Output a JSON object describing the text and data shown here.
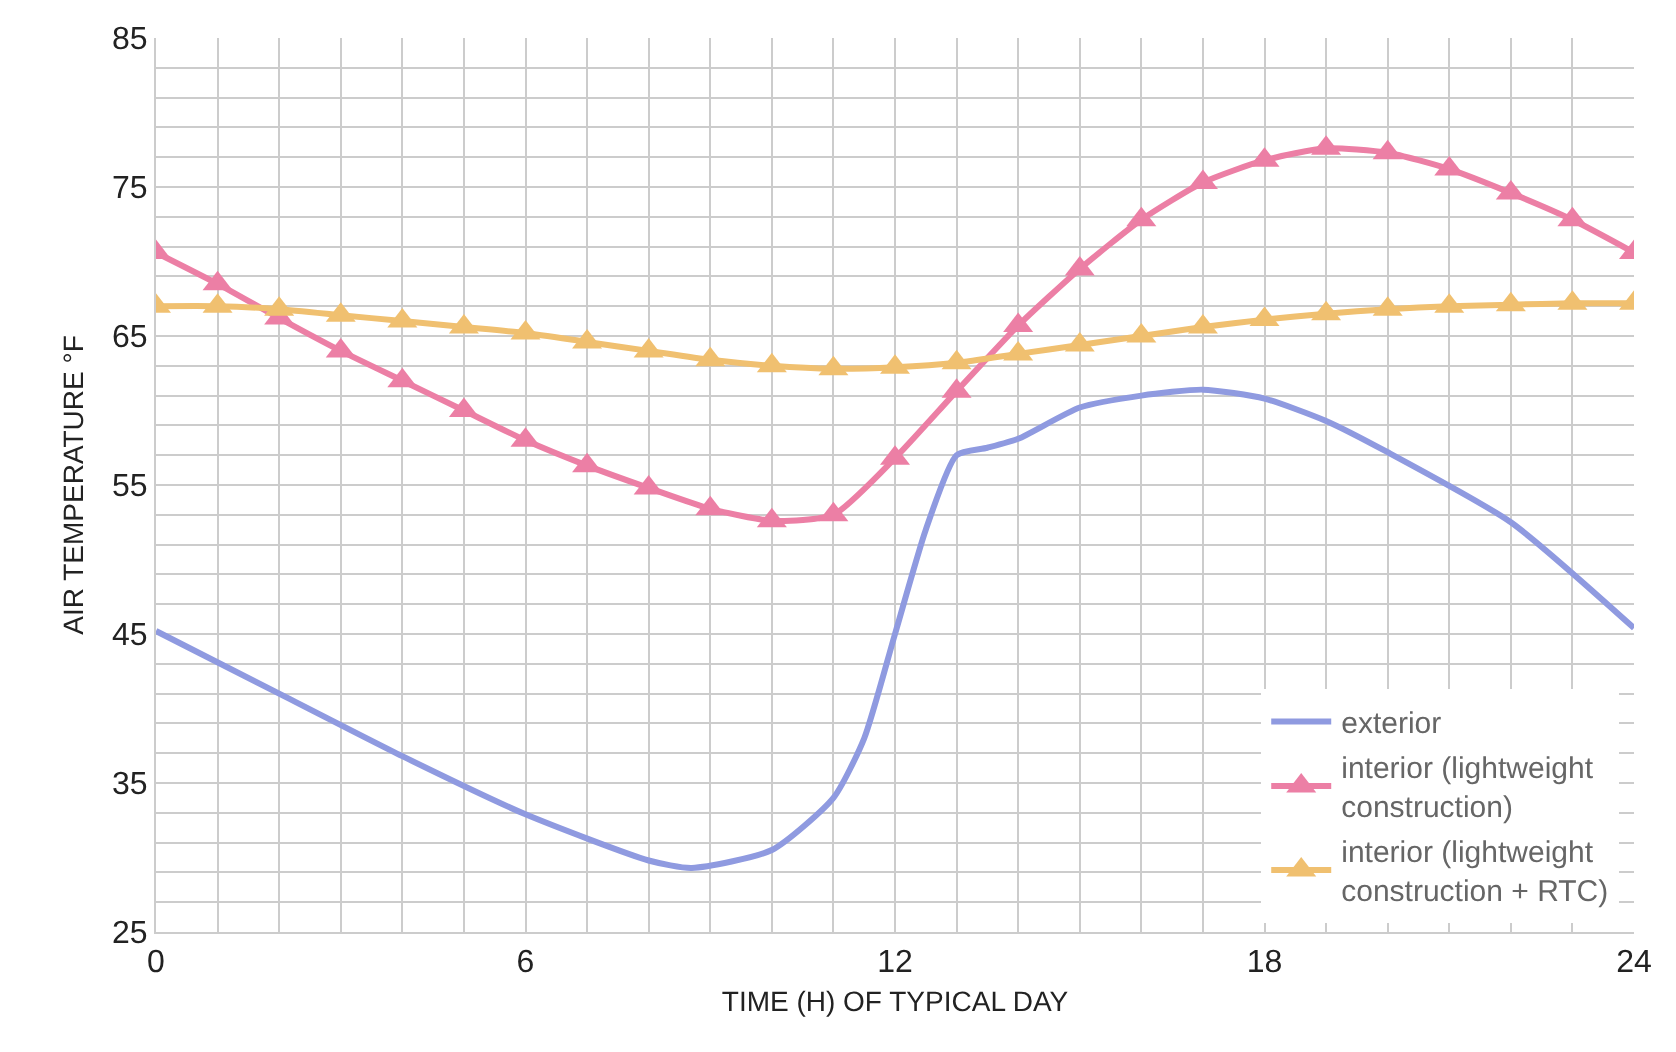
{
  "chart_data": {
    "type": "line",
    "xlabel": "TIME (H) OF TYPICAL DAY",
    "ylabel": "AIR TEMPERATURE °F",
    "xlim": [
      0,
      24
    ],
    "xticks": [
      0,
      {
        "value": 1,
        "label": null
      },
      {
        "value": 2,
        "label": null
      },
      {
        "value": 3,
        "label": null
      },
      {
        "value": 4,
        "label": null
      },
      {
        "value": 5,
        "label": null
      },
      6,
      {
        "value": 7,
        "label": null
      },
      {
        "value": 8,
        "label": null
      },
      {
        "value": 9,
        "label": null
      },
      {
        "value": 10,
        "label": null
      },
      {
        "value": 11,
        "label": null
      },
      12,
      {
        "value": 13,
        "label": null
      },
      {
        "value": 14,
        "label": null
      },
      {
        "value": 15,
        "label": null
      },
      {
        "value": 16,
        "label": null
      },
      {
        "value": 17,
        "label": null
      },
      18,
      {
        "value": 19,
        "label": null
      },
      {
        "value": 20,
        "label": null
      },
      {
        "value": 21,
        "label": null
      },
      {
        "value": 22,
        "label": null
      },
      {
        "value": 23,
        "label": null
      },
      24
    ],
    "ylim": [
      25,
      85
    ],
    "yticks": [
      25,
      {
        "value": 27,
        "label": null
      },
      {
        "value": 29,
        "label": null
      },
      {
        "value": 31,
        "label": null
      },
      {
        "value": 33,
        "label": null
      },
      35,
      {
        "value": 37,
        "label": null
      },
      {
        "value": 39,
        "label": null
      },
      {
        "value": 41,
        "label": null
      },
      {
        "value": 43,
        "label": null
      },
      45,
      {
        "value": 47,
        "label": null
      },
      {
        "value": 49,
        "label": null
      },
      {
        "value": 51,
        "label": null
      },
      {
        "value": 53,
        "label": null
      },
      55,
      {
        "value": 57,
        "label": null
      },
      {
        "value": 59,
        "label": null
      },
      {
        "value": 61,
        "label": null
      },
      {
        "value": 63,
        "label": null
      },
      65,
      {
        "value": 67,
        "label": null
      },
      {
        "value": 69,
        "label": null
      },
      {
        "value": 71,
        "label": null
      },
      {
        "value": 73,
        "label": null
      },
      75,
      {
        "value": 77,
        "label": null
      },
      {
        "value": 79,
        "label": null
      },
      {
        "value": 81,
        "label": null
      },
      {
        "value": 83,
        "label": null
      },
      85
    ],
    "grid": true,
    "legend": "bottom right",
    "line_style": "solid",
    "series": [
      {
        "name": "exterior",
        "color": "#8f9ae0",
        "marker": "none",
        "x": [
          0,
          2,
          4,
          6,
          8,
          8.7,
          10,
          11,
          11.5,
          12,
          12.5,
          13,
          13.5,
          14,
          15,
          16,
          17,
          18,
          19,
          20,
          22,
          24
        ],
        "values": [
          45.2,
          41,
          36.8,
          32.9,
          29.8,
          29.3,
          30.5,
          34,
          38,
          45,
          52,
          57,
          57.5,
          58.1,
          60.2,
          61,
          61.4,
          60.8,
          59.3,
          57.2,
          52.5,
          45.4
        ]
      },
      {
        "name": "interior (lightweight construction)",
        "color": "#ec7fa5",
        "marker": "triangle",
        "x": [
          0,
          1,
          2,
          3,
          4,
          5,
          6,
          7,
          8,
          9,
          10,
          11,
          12,
          13,
          14,
          15,
          16,
          17,
          18,
          19,
          20,
          21,
          22,
          23,
          24
        ],
        "values": [
          70.6,
          68.5,
          66.2,
          64,
          62,
          60,
          58,
          56.3,
          54.8,
          53.4,
          52.6,
          53,
          56.8,
          61.3,
          65.7,
          69.5,
          72.8,
          75.3,
          76.8,
          77.6,
          77.3,
          76.2,
          74.6,
          72.8,
          70.6
        ]
      },
      {
        "name": "interior (lightweight construction + RTC)",
        "color": "#f0c070",
        "marker": "triangle",
        "x": [
          0,
          1,
          2,
          3,
          4,
          5,
          6,
          7,
          8,
          9,
          10,
          11,
          12,
          13,
          14,
          15,
          16,
          17,
          18,
          19,
          20,
          21,
          22,
          23,
          24
        ],
        "values": [
          67,
          67,
          66.8,
          66.4,
          66,
          65.6,
          65.2,
          64.6,
          64,
          63.4,
          63,
          62.8,
          62.9,
          63.2,
          63.8,
          64.4,
          65,
          65.6,
          66.1,
          66.5,
          66.8,
          67,
          67.1,
          67.2,
          67.2
        ]
      }
    ]
  }
}
